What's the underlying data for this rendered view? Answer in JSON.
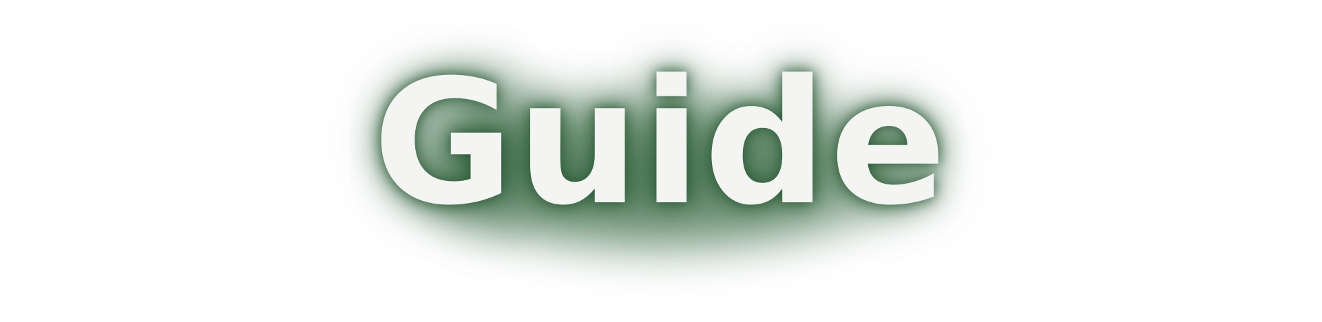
{
  "header": {
    "title": "Guide"
  }
}
